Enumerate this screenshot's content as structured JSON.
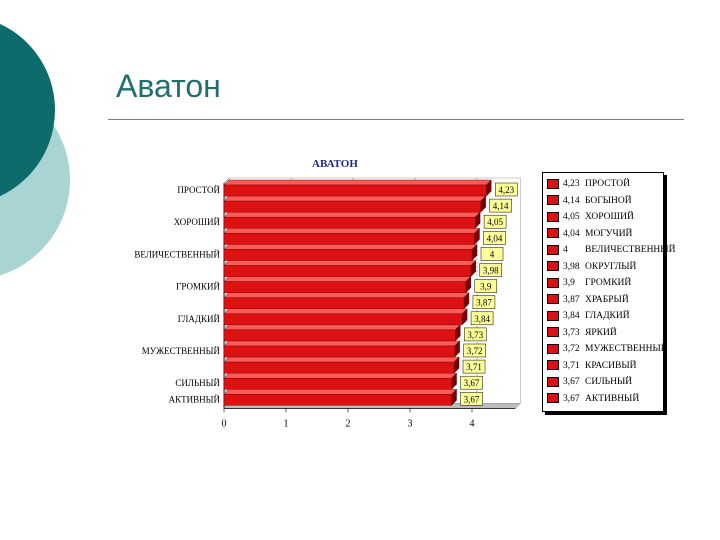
{
  "slide": {
    "title": "Аватон"
  },
  "chart_data": {
    "type": "bar",
    "orientation": "horizontal",
    "title": "АВАТОН",
    "categories": [
      "ПРОСТОЙ",
      "БОГЫНОЙ",
      "ХОРОШИЙ",
      "МОГУЧИЙ",
      "ВЕЛИЧЕСТВЕННЫЙ",
      "ОКРУГЛЫЙ",
      "ГРОМКИЙ",
      "ХРАБРЫЙ",
      "ГЛАДКИЙ",
      "ЯРКИЙ",
      "МУЖЕСТВЕННЫЙ",
      "КРАСИВЫЙ",
      "СИЛЬНЫЙ",
      "АКТИВНЫЙ"
    ],
    "values": [
      4.23,
      4.14,
      4.05,
      4.04,
      4.0,
      3.98,
      3.9,
      3.87,
      3.84,
      3.73,
      3.72,
      3.71,
      3.67,
      3.67
    ],
    "value_labels": [
      "4,23",
      "4,14",
      "4,05",
      "4,04",
      "4",
      "3,98",
      "3,9",
      "3,87",
      "3,84",
      "3,73",
      "3,72",
      "3,71",
      "3,67",
      "3,67"
    ],
    "axis_category_labels": [
      "ПРОСТОЙ",
      "",
      "ХОРОШИЙ",
      "",
      "ВЕЛИЧЕСТВЕННЫЙ",
      "",
      "ГРОМКИЙ",
      "",
      "ГЛАДКИЙ",
      "",
      "МУЖЕСТВЕННЫЙ",
      "",
      "СИЛЬНЫЙ",
      "АКТИВНЫЙ"
    ],
    "xticks": [
      "0",
      "1",
      "2",
      "3",
      "4"
    ],
    "xlim": [
      0,
      4.7
    ],
    "legend_placement": "right",
    "grid": true,
    "colors": {
      "bar": "#dd1111",
      "bar_dark": "#7a0000",
      "label_bg": "#ffff99"
    }
  }
}
